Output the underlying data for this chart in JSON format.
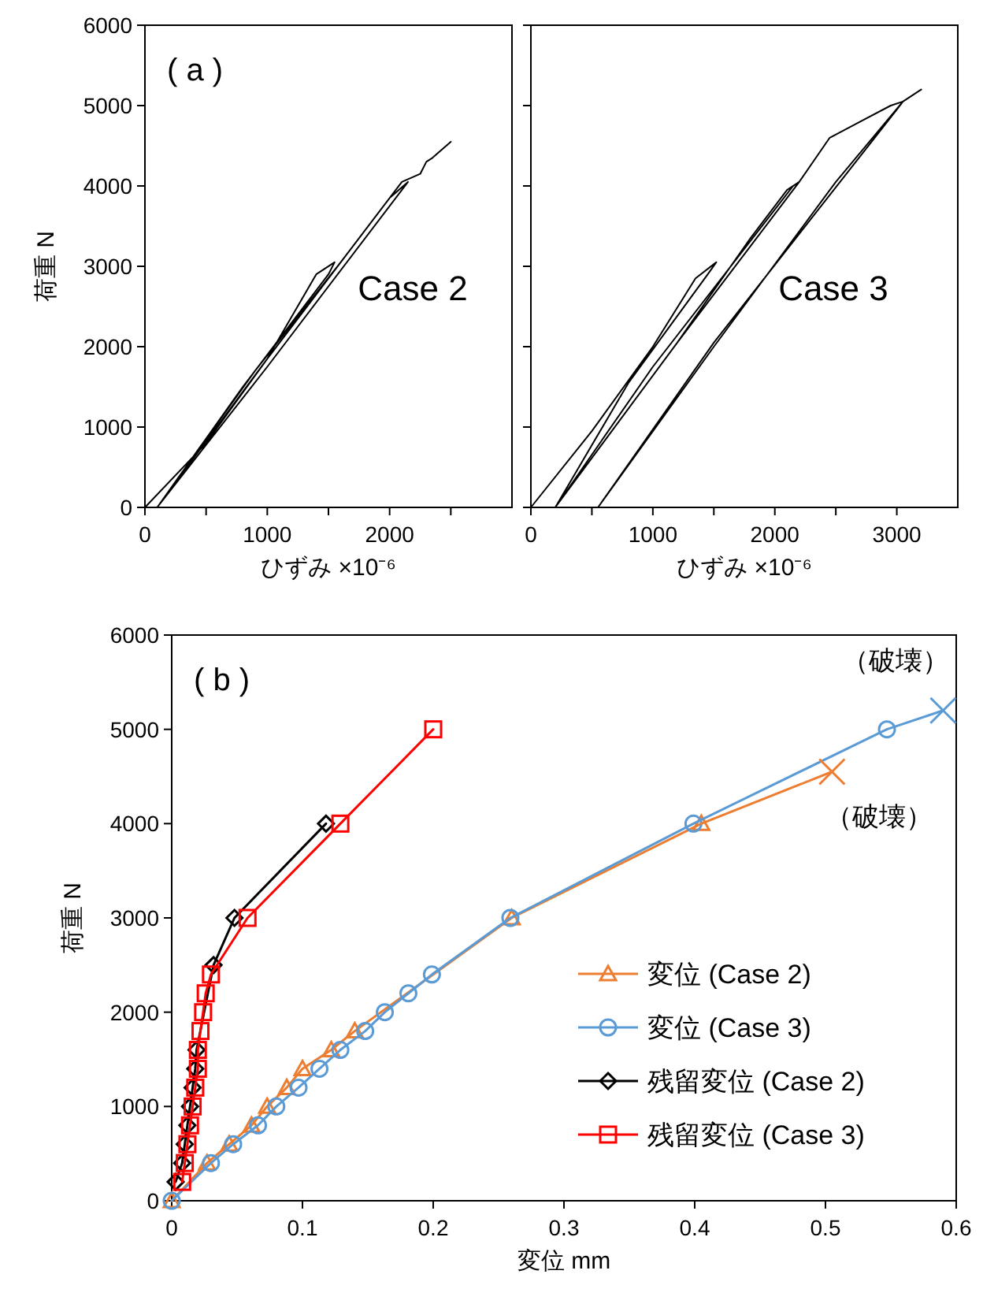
{
  "chart_data": [
    {
      "type": "line",
      "ylabel": "荷重 N",
      "xlabel": "ひずみ ×10⁻⁶",
      "annotations": [
        "( a )",
        "Case 2"
      ],
      "xlim": [
        0,
        3000
      ],
      "xticks": [
        0,
        {
          "value": 500,
          "label": null
        },
        1000,
        {
          "value": 1500,
          "label": null
        },
        2000,
        {
          "value": 2500,
          "label": null
        }
      ],
      "ylim": [
        0,
        6000
      ],
      "yticks": [
        0,
        1000,
        2000,
        3000,
        4000,
        5000,
        6000
      ],
      "series": [
        {
          "color": "#000000",
          "x": [
            0,
            500,
            1000,
            1400,
            1550,
            1500,
            800,
            100,
            900,
            1600,
            2000,
            2150,
            2100,
            1000,
            100,
            1000,
            2100,
            2250,
            2300,
            2350,
            2500
          ],
          "values": [
            0,
            800,
            1850,
            2900,
            3050,
            2900,
            1500,
            0,
            1700,
            3050,
            3850,
            4050,
            3950,
            1750,
            0,
            1850,
            4050,
            4150,
            4300,
            4350,
            4550
          ]
        }
      ]
    },
    {
      "type": "line",
      "xlabel": "ひずみ ×10⁻⁶",
      "annotations": [
        "Case 3"
      ],
      "tick_labels": "x",
      "xlim": [
        0,
        3500
      ],
      "xticks": [
        0,
        {
          "value": 500,
          "label": null
        },
        1000,
        {
          "value": 1500,
          "label": null
        },
        2000,
        {
          "value": 2500,
          "label": null
        },
        3000
      ],
      "ylim": [
        0,
        6000
      ],
      "yticks": [
        {
          "value": 0,
          "label": null
        },
        {
          "value": 1000,
          "label": null
        },
        {
          "value": 2000,
          "label": null
        },
        {
          "value": 3000,
          "label": null
        },
        {
          "value": 4000,
          "label": null
        },
        {
          "value": 5000,
          "label": null
        },
        {
          "value": 6000,
          "label": null
        }
      ],
      "series": [
        {
          "color": "#000000",
          "x": [
            0,
            500,
            1000,
            1350,
            1520,
            1450,
            800,
            200,
            1200,
            1800,
            2100,
            2200,
            2150,
            1000,
            200,
            1200,
            2200,
            2450,
            2700,
            2950,
            3050,
            3000,
            1500,
            550,
            1500,
            2500,
            3050,
            3200
          ],
          "values": [
            0,
            950,
            2000,
            2850,
            3050,
            2900,
            1550,
            0,
            2050,
            3350,
            3950,
            4050,
            4000,
            1750,
            0,
            2050,
            4050,
            4600,
            4800,
            5000,
            5050,
            4950,
            2050,
            0,
            2000,
            4050,
            5050,
            5200
          ]
        }
      ]
    },
    {
      "type": "line",
      "ylabel": "荷重 N",
      "xlabel": "変位 mm",
      "legend": "bottom right",
      "annotations": [
        "( b )",
        {
          "text": "（破壊）",
          "x": 0.59,
          "y": 5200
        },
        {
          "text": "（破壊）",
          "x": 0.505,
          "y": 4550
        }
      ],
      "xlim": [
        0,
        0.6
      ],
      "xticks": [
        0,
        0.1,
        0.2,
        0.3,
        0.4,
        0.5,
        0.6
      ],
      "ylim": [
        0,
        6000
      ],
      "yticks": [
        0,
        1000,
        2000,
        3000,
        4000,
        5000,
        6000
      ],
      "series": [
        {
          "name": "変位 (Case 2)",
          "color": "#ed7d31",
          "marker": "triangle",
          "x": [
            0,
            0.027,
            0.044,
            0.061,
            0.073,
            0.088,
            0.1,
            0.122,
            0.14,
            0.26,
            0.405
          ],
          "values": [
            0,
            400,
            600,
            800,
            1000,
            1200,
            1400,
            1600,
            1800,
            3000,
            4000
          ]
        },
        {
          "name": "変位 (Case 3)",
          "color": "#5b9bd5",
          "marker": "circle",
          "x": [
            0,
            0.03,
            0.047,
            0.066,
            0.08,
            0.097,
            0.113,
            0.129,
            0.148,
            0.163,
            0.181,
            0.199,
            0.259,
            0.399,
            0.547
          ],
          "values": [
            0,
            400,
            600,
            800,
            1000,
            1200,
            1400,
            1600,
            1800,
            2000,
            2200,
            2400,
            3000,
            4000,
            5000
          ]
        },
        {
          "name": "残留変位 (Case 2)",
          "color": "#000000",
          "marker": "diamond",
          "x": [
            0.003,
            0.008,
            0.01,
            0.012,
            0.014,
            0.016,
            0.018,
            0.019,
            0.032,
            0.048,
            0.118
          ],
          "values": [
            200,
            400,
            600,
            800,
            1000,
            1200,
            1400,
            1600,
            2500,
            3000,
            4000
          ]
        },
        {
          "name": "残留変位 (Case 3)",
          "color": "#ff0000",
          "marker": "square",
          "x": [
            0.008,
            0.01,
            0.012,
            0.014,
            0.016,
            0.018,
            0.02,
            0.02,
            0.022,
            0.024,
            0.026,
            0.03,
            0.058,
            0.129,
            0.2
          ],
          "values": [
            200,
            400,
            600,
            800,
            1000,
            1200,
            1400,
            1600,
            1800,
            2000,
            2200,
            2400,
            3000,
            4000,
            5000
          ]
        },
        {
          "color": "#ed7d31",
          "x": [
            0.405,
            0.505
          ],
          "values": [
            4000,
            4550
          ]
        },
        {
          "color": "#5b9bd5",
          "x": [
            0.547,
            0.59
          ],
          "values": [
            5000,
            5200
          ]
        },
        {
          "type": "scatter",
          "color": "#ed7d31",
          "marker": "cross",
          "x": [
            0.505
          ],
          "values": [
            4550
          ]
        },
        {
          "type": "scatter",
          "color": "#5b9bd5",
          "marker": "cross",
          "x": [
            0.59
          ],
          "values": [
            5200
          ]
        }
      ]
    }
  ]
}
